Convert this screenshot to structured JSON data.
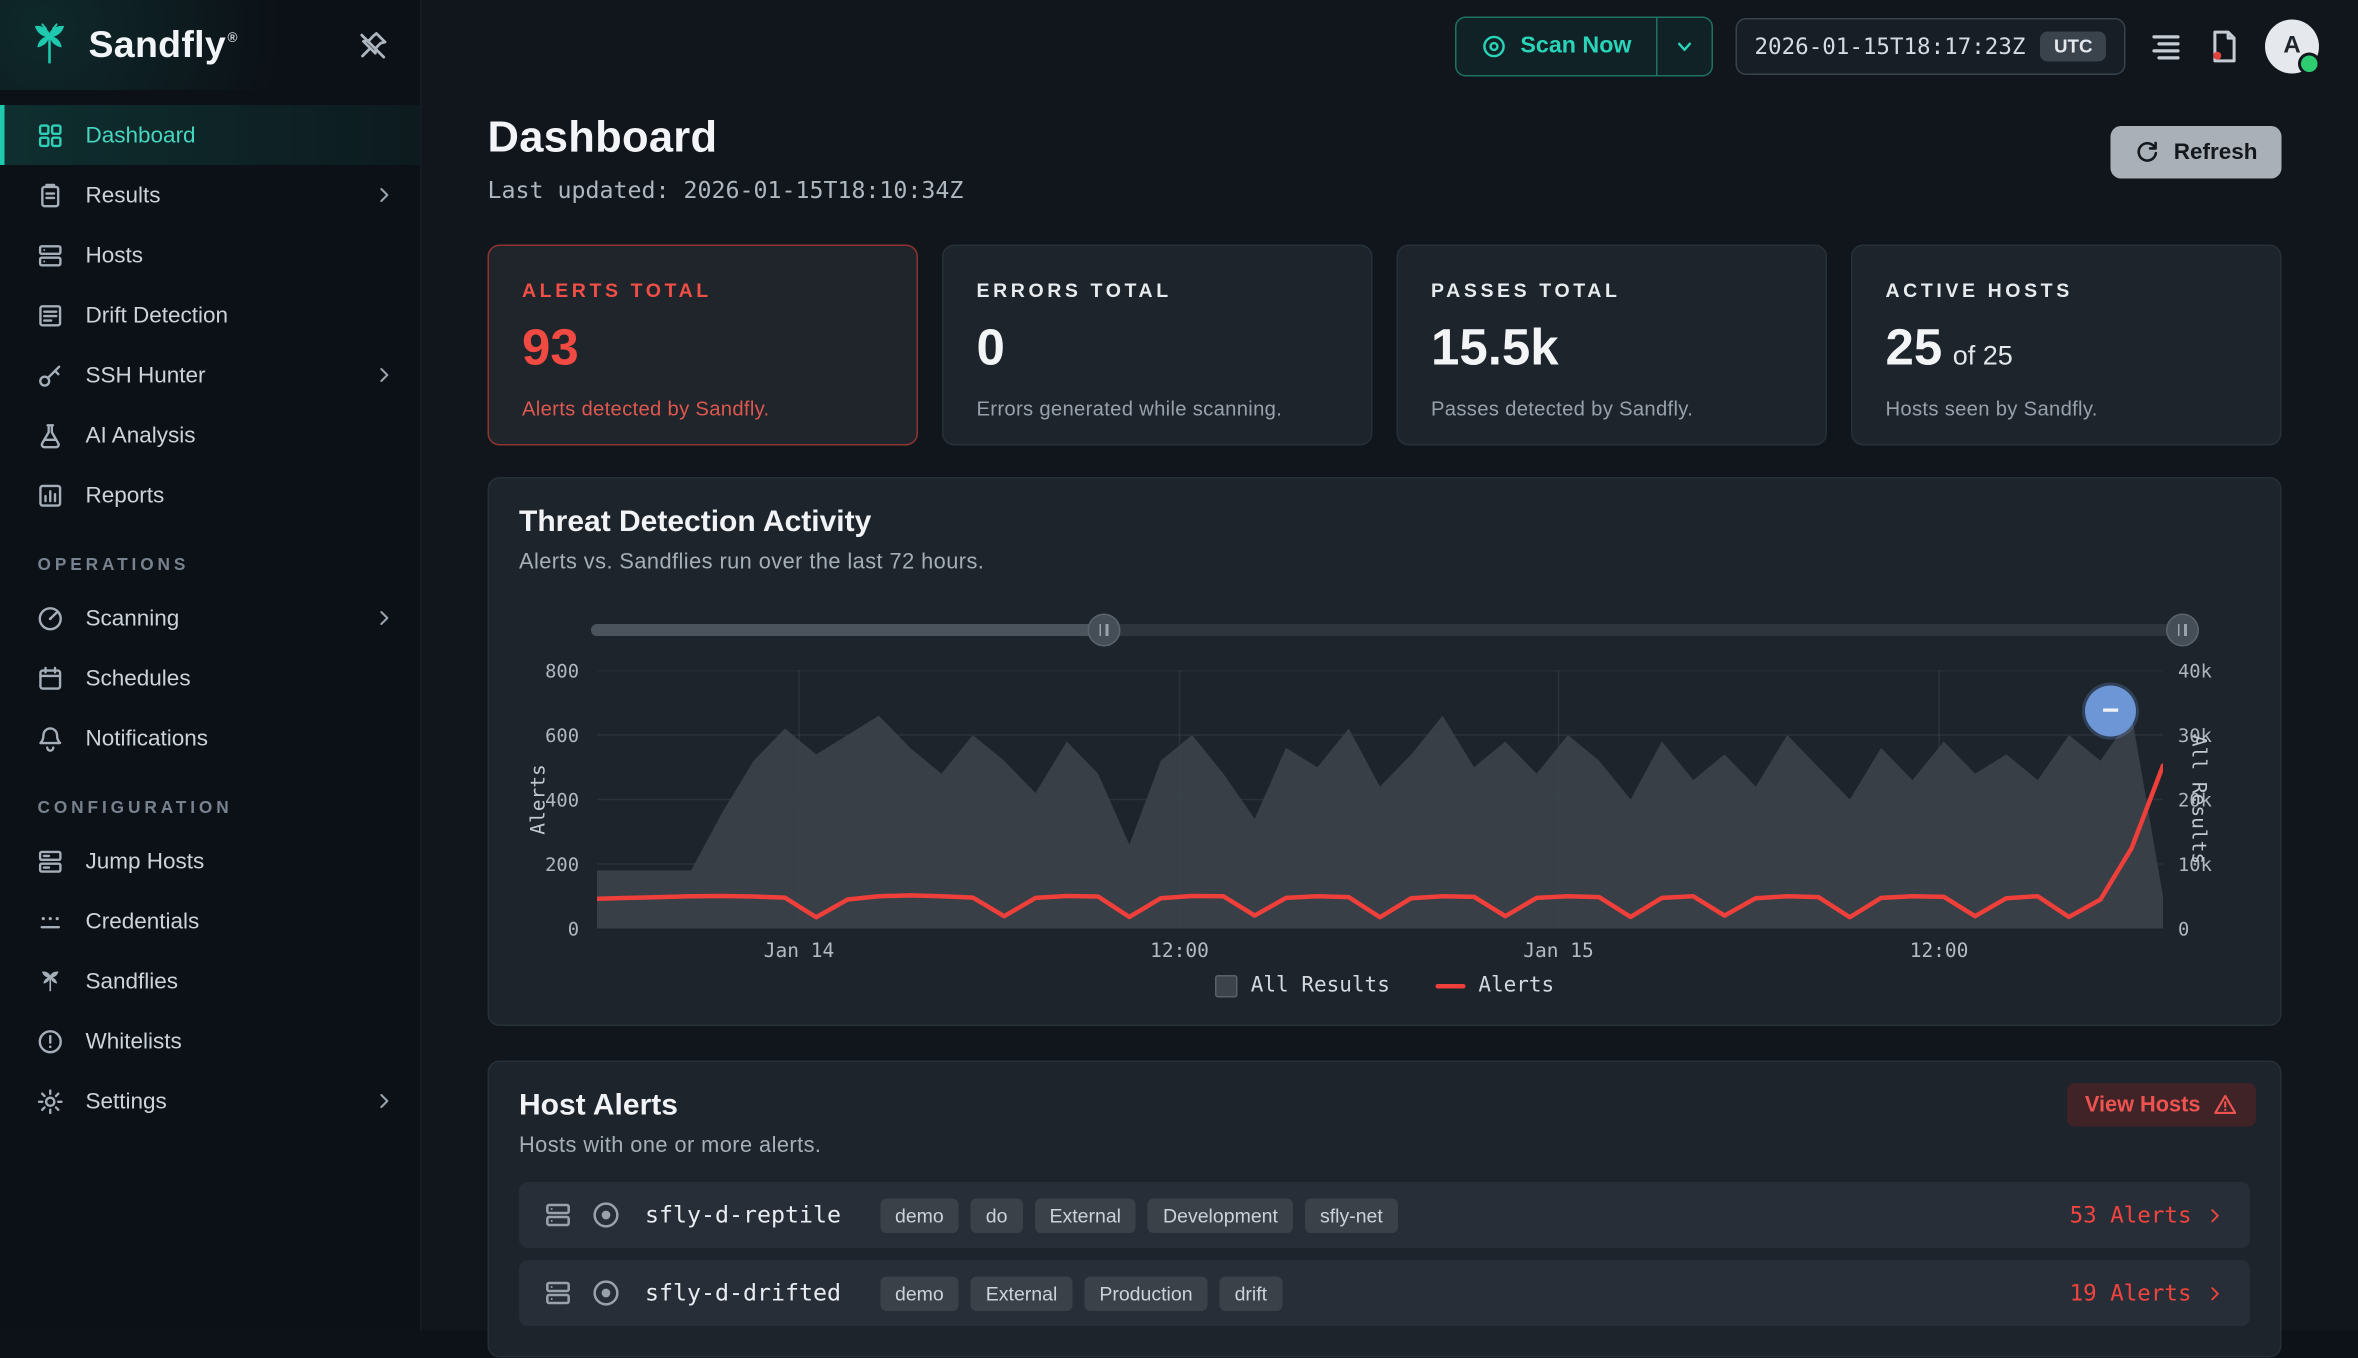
{
  "brand": {
    "name": "Sandfly",
    "registered": "®"
  },
  "sidebar": {
    "sections": [
      {
        "heading": "",
        "items": [
          {
            "label": "Dashboard",
            "icon": "grid",
            "active": true,
            "chevron": false
          },
          {
            "label": "Results",
            "icon": "clipboard",
            "active": false,
            "chevron": true
          },
          {
            "label": "Hosts",
            "icon": "server",
            "active": false,
            "chevron": false
          },
          {
            "label": "Drift Detection",
            "icon": "drift",
            "active": false,
            "chevron": false
          },
          {
            "label": "SSH Hunter",
            "icon": "key",
            "active": false,
            "chevron": true
          },
          {
            "label": "AI Analysis",
            "icon": "flask",
            "active": false,
            "chevron": false
          },
          {
            "label": "Reports",
            "icon": "report",
            "active": false,
            "chevron": false
          }
        ]
      },
      {
        "heading": "OPERATIONS",
        "items": [
          {
            "label": "Scanning",
            "icon": "radar",
            "active": false,
            "chevron": true
          },
          {
            "label": "Schedules",
            "icon": "calendar",
            "active": false,
            "chevron": false
          },
          {
            "label": "Notifications",
            "icon": "bell",
            "active": false,
            "chevron": false
          }
        ]
      },
      {
        "heading": "CONFIGURATION",
        "items": [
          {
            "label": "Jump Hosts",
            "icon": "jump",
            "active": false,
            "chevron": false
          },
          {
            "label": "Credentials",
            "icon": "credentials",
            "active": false,
            "chevron": false
          },
          {
            "label": "Sandflies",
            "icon": "sandfly",
            "active": false,
            "chevron": false
          },
          {
            "label": "Whitelists",
            "icon": "whitelist",
            "active": false,
            "chevron": false
          },
          {
            "label": "Settings",
            "icon": "gear",
            "active": false,
            "chevron": true
          }
        ]
      }
    ]
  },
  "topbar": {
    "scan_now": "Scan Now",
    "timestamp": "2026-01-15T18:17:23Z",
    "timezone": "UTC",
    "avatar_initial": "A"
  },
  "header": {
    "title": "Dashboard",
    "last_updated": "Last updated: 2026-01-15T18:10:34Z",
    "refresh": "Refresh"
  },
  "stats": [
    {
      "label": "ALERTS TOTAL",
      "value": "93",
      "value_suffix": "",
      "desc": "Alerts detected by Sandfly.",
      "variant": "alert"
    },
    {
      "label": "ERRORS TOTAL",
      "value": "0",
      "value_suffix": "",
      "desc": "Errors generated while scanning.",
      "variant": ""
    },
    {
      "label": "PASSES TOTAL",
      "value": "15.5k",
      "value_suffix": "",
      "desc": "Passes detected by Sandfly.",
      "variant": ""
    },
    {
      "label": "ACTIVE HOSTS",
      "value": "25",
      "value_suffix": "of 25",
      "desc": "Hosts seen by Sandfly.",
      "variant": ""
    }
  ],
  "chart_card": {
    "title": "Threat Detection Activity",
    "subtitle": "Alerts vs. Sandflies run over the last 72 hours.",
    "slider": {
      "start": 0.32,
      "end": 0.993
    },
    "zoom_out_glyph": "−"
  },
  "chart_data": {
    "type": "area",
    "title": "Threat Detection Activity",
    "subtitle": "Alerts vs. Sandflies run over the last 72 hours.",
    "x_tick_labels": [
      "Jan 14",
      "12:00",
      "Jan 15",
      "12:00"
    ],
    "x_tick_positions": [
      0.129,
      0.372,
      0.614,
      0.857
    ],
    "left_axis": {
      "label": "Alerts",
      "ticks": [
        0,
        200,
        400,
        600,
        800
      ],
      "max": 800
    },
    "right_axis": {
      "label": "All Results",
      "ticks": [
        0,
        10,
        20,
        30,
        40
      ],
      "tick_labels": [
        "0",
        "10k",
        "20k",
        "30k",
        "40k"
      ],
      "max": 40
    },
    "grid": true,
    "legend_position": "bottom",
    "series": [
      {
        "name": "All Results",
        "type": "area",
        "axis": "right",
        "color": "#3b424a",
        "max": 40,
        "values": [
          9,
          9,
          9,
          9,
          18,
          26,
          31,
          27,
          30,
          33,
          28,
          24,
          30,
          26,
          21,
          29,
          24,
          13,
          26,
          30,
          24,
          17,
          28,
          25,
          31,
          22,
          27,
          33,
          25,
          29,
          24,
          30,
          26,
          20,
          29,
          23,
          27,
          22,
          30,
          25,
          20,
          28,
          23,
          29,
          24,
          27,
          23,
          30,
          26,
          33,
          5
        ]
      },
      {
        "name": "Alerts",
        "type": "line",
        "axis": "left",
        "color": "#ee3f3a",
        "max": 800,
        "values": [
          92,
          95,
          97,
          100,
          101,
          99,
          96,
          35,
          90,
          100,
          103,
          100,
          96,
          38,
          95,
          101,
          99,
          36,
          94,
          101,
          100,
          40,
          95,
          100,
          97,
          35,
          94,
          100,
          98,
          38,
          95,
          100,
          97,
          36,
          95,
          100,
          40,
          94,
          100,
          97,
          35,
          95,
          100,
          98,
          38,
          94,
          100,
          36,
          90,
          250,
          505
        ]
      }
    ]
  },
  "host_alerts": {
    "title": "Host Alerts",
    "subtitle": "Hosts with one or more alerts.",
    "view_hosts": "View Hosts",
    "rows": [
      {
        "hostname": "sfly-d-reptile",
        "tags": [
          "demo",
          "do",
          "External",
          "Development",
          "sfly-net"
        ],
        "alerts": "53 Alerts"
      },
      {
        "hostname": "sfly-d-drifted",
        "tags": [
          "demo",
          "External",
          "Production",
          "drift"
        ],
        "alerts": "19 Alerts"
      }
    ]
  },
  "colors": {
    "accent_teal": "#1ec9ae",
    "alert_red": "#f0453f",
    "area_gray": "#3b424a",
    "card_bg": "#1d242c",
    "page_bg": "#10161c"
  }
}
